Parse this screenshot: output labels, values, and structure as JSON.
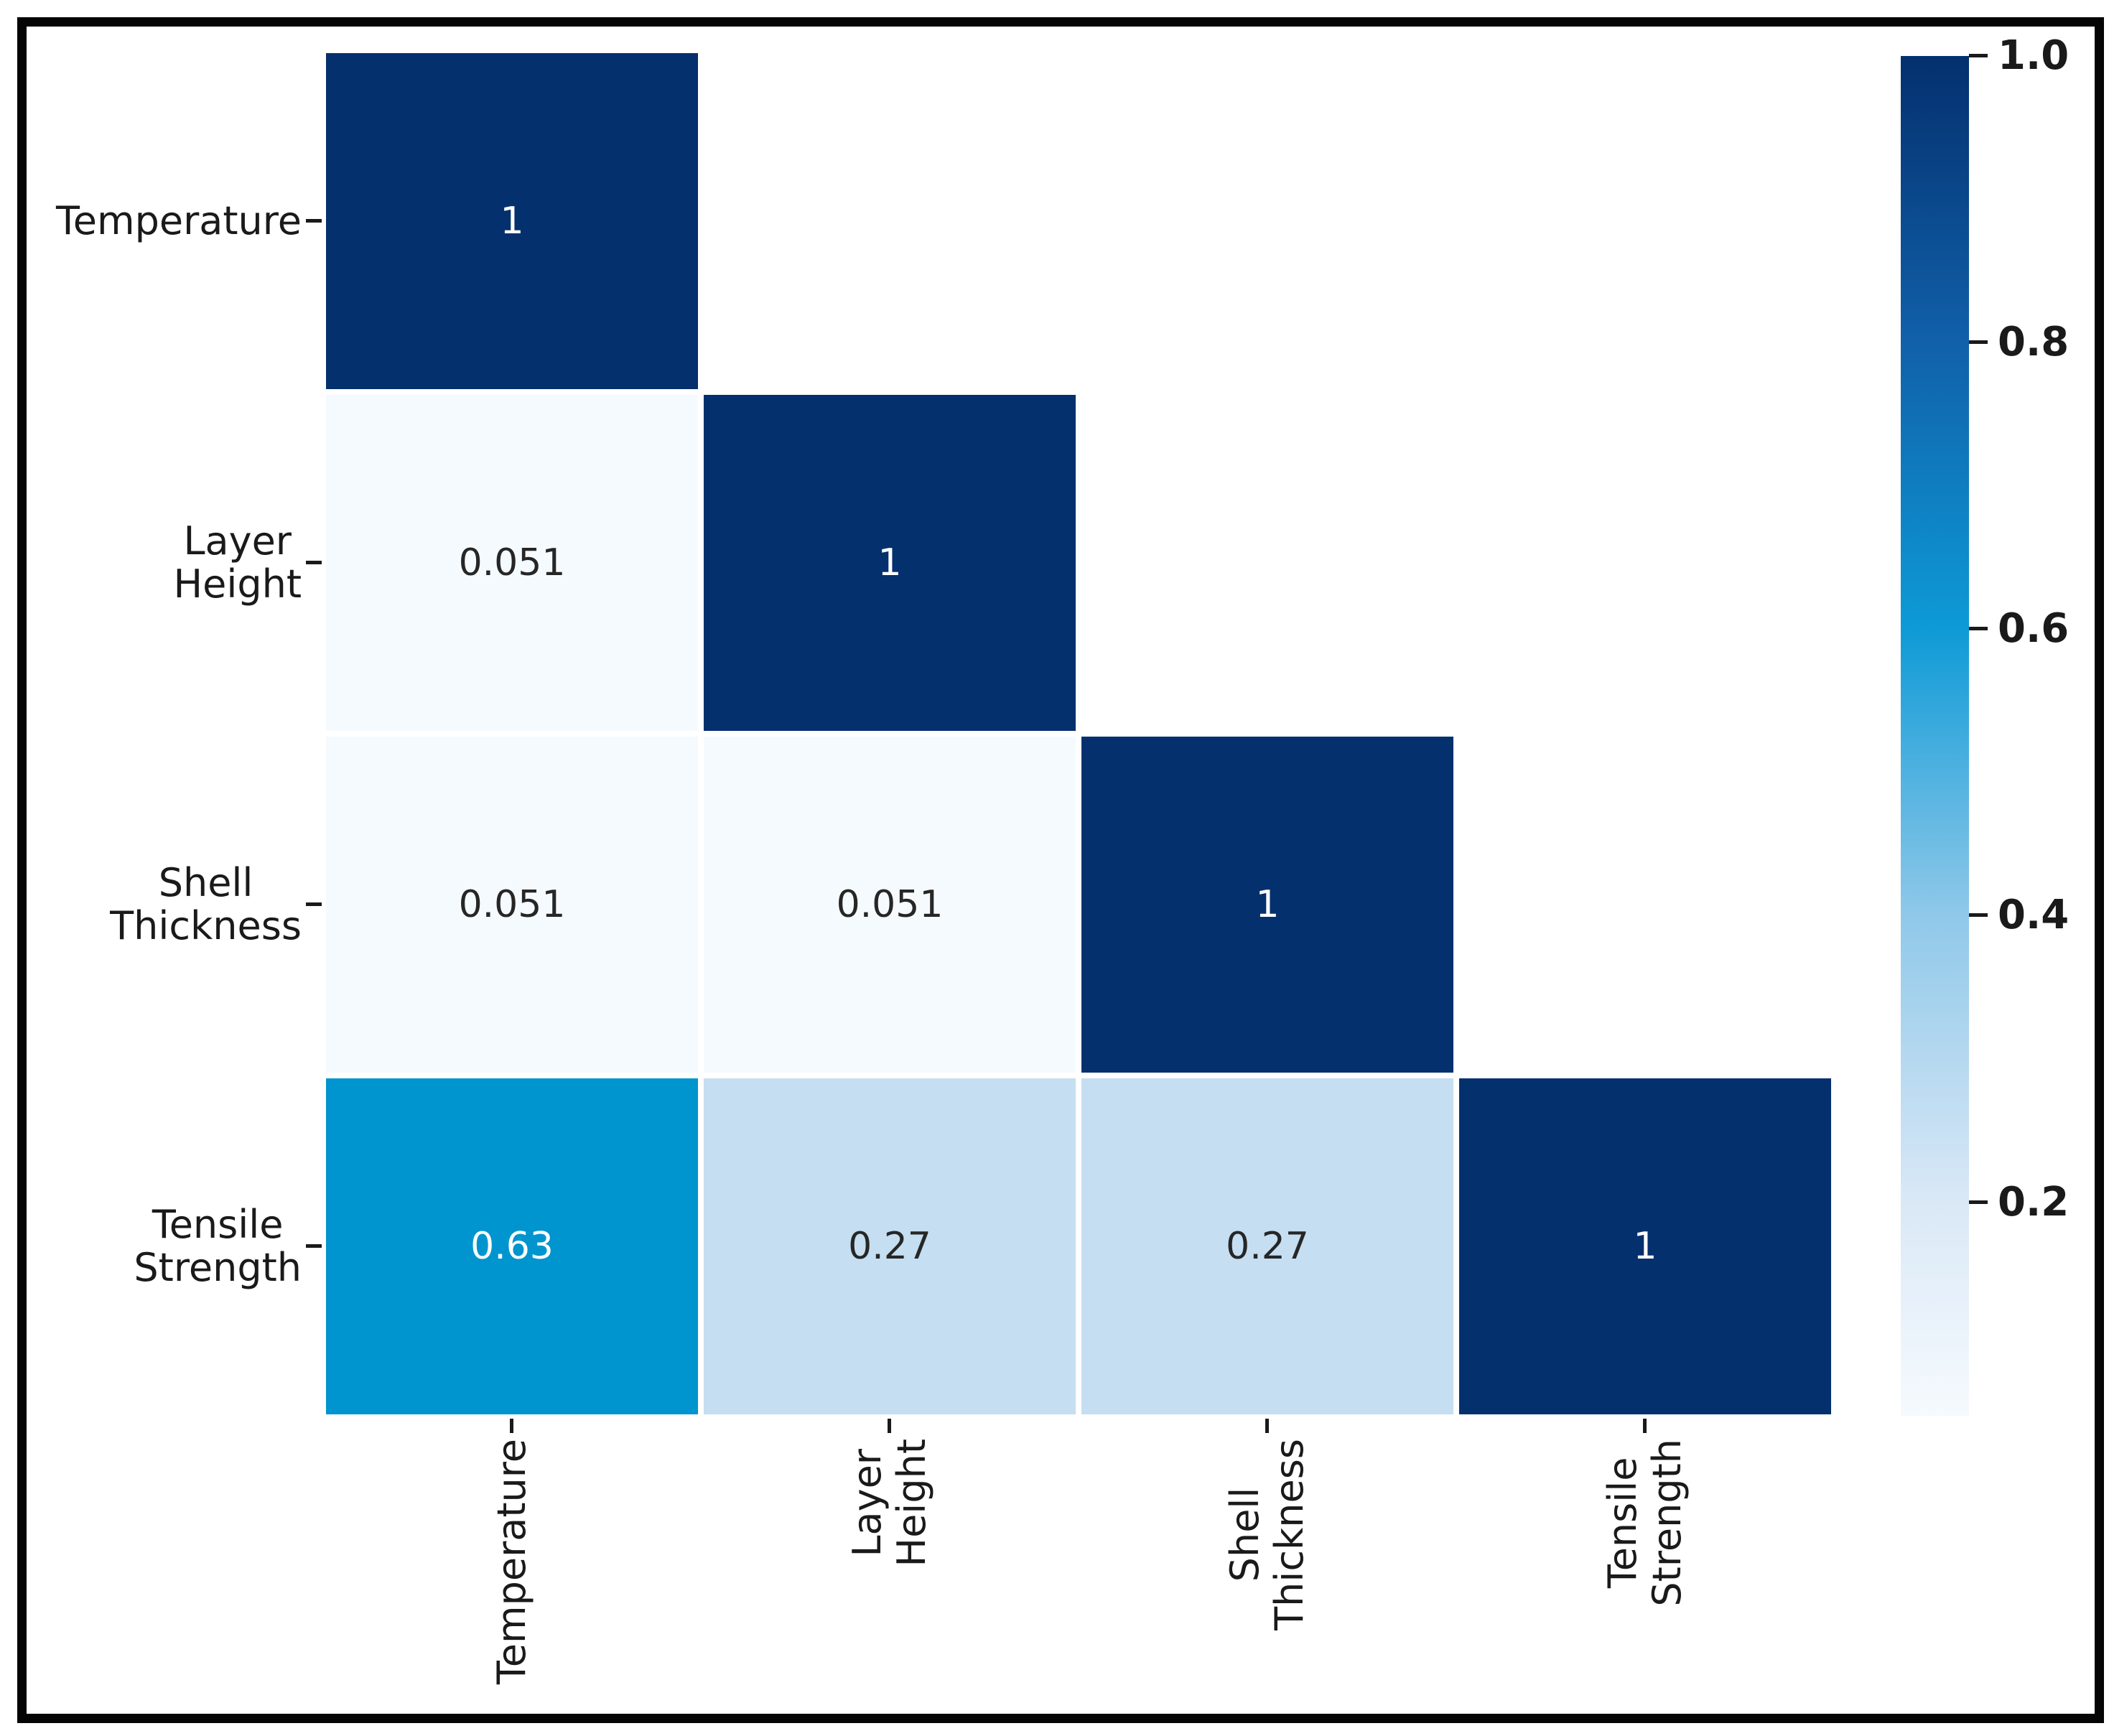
{
  "figure": {
    "background_color": "#ffffff",
    "border_color": "#050505",
    "text_color": "#1a1a1a"
  },
  "chart_data": {
    "type": "heatmap",
    "title": "",
    "subtitle": "",
    "description": "Lower-triangular correlation matrix heatmap with colorbar",
    "variables": [
      "Temperature",
      "Layer Height",
      "Shell Thickness",
      "Tensile Strength"
    ],
    "row_label_lines": [
      [
        "Temperature"
      ],
      [
        "Layer",
        "Height"
      ],
      [
        "Shell",
        "Thickness"
      ],
      [
        "Tensile",
        "Strength"
      ]
    ],
    "col_label_lines": [
      [
        "Temperature"
      ],
      [
        "Layer",
        "Height"
      ],
      [
        "Shell",
        "Thickness"
      ],
      [
        "Tensile",
        "Strength"
      ]
    ],
    "matrix": [
      [
        1
      ],
      [
        0.051,
        1
      ],
      [
        0.051,
        0.051,
        1
      ],
      [
        0.63,
        0.27,
        0.27,
        1
      ]
    ],
    "value_labels": [
      [
        "1"
      ],
      [
        "0.051",
        "1"
      ],
      [
        "0.051",
        "0.051",
        "1"
      ],
      [
        "0.63",
        "0.27",
        "0.27",
        "1"
      ]
    ],
    "cell_colors": [
      [
        "#04306e"
      ],
      [
        "#f5fafe",
        "#04306e"
      ],
      [
        "#f5fafe",
        "#f5fafe",
        "#04306e"
      ],
      [
        "#0095ce",
        "#c5def1",
        "#c5def1",
        "#04306e"
      ]
    ],
    "value_text_colors": [
      [
        "#ffffff"
      ],
      [
        "#262626",
        "#ffffff"
      ],
      [
        "#262626",
        "#262626",
        "#ffffff"
      ],
      [
        "#ffffff",
        "#262626",
        "#262626",
        "#ffffff"
      ]
    ],
    "colormap": "Blues",
    "vmin": 0.051,
    "vmax": 1.0,
    "grid": false,
    "legend_position": "colorbar-right",
    "colorbar": {
      "ticks": [
        {
          "label": "1.0",
          "value": 1.0
        },
        {
          "label": "0.8",
          "value": 0.8
        },
        {
          "label": "0.6",
          "value": 0.6
        },
        {
          "label": "0.4",
          "value": 0.4
        },
        {
          "label": "0.2",
          "value": 0.2
        }
      ],
      "gradient_stops": [
        {
          "pos": 0.0,
          "color": "#04306e"
        },
        {
          "pos": 0.21,
          "color": "#1160a9"
        },
        {
          "pos": 0.42,
          "color": "#0d9ad6"
        },
        {
          "pos": 0.63,
          "color": "#8fc8e9"
        },
        {
          "pos": 0.84,
          "color": "#d9e8f6"
        },
        {
          "pos": 1.0,
          "color": "#f6fafe"
        }
      ]
    }
  }
}
